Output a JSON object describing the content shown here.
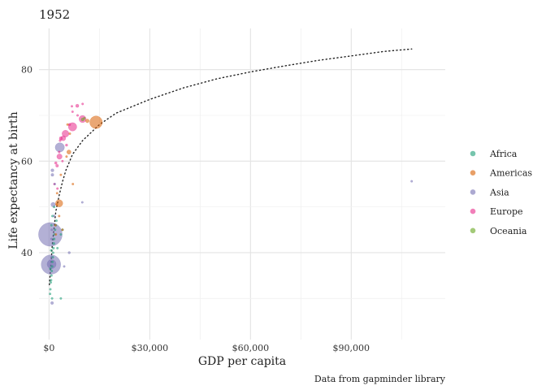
{
  "chart_data": {
    "type": "scatter",
    "title": "1952",
    "xlabel": "GDP per capita",
    "ylabel": "Life expectancy at birth",
    "caption": "Data from gapminder library",
    "xlim": [
      -3000,
      118000
    ],
    "ylim": [
      21,
      89
    ],
    "x_ticks": [
      {
        "value": 0,
        "label": "$0"
      },
      {
        "value": 30000,
        "label": "$30,000"
      },
      {
        "value": 60000,
        "label": "$60,000"
      },
      {
        "value": 90000,
        "label": "$90,000"
      }
    ],
    "y_ticks": [
      {
        "value": 40,
        "label": "40"
      },
      {
        "value": 60,
        "label": "60"
      },
      {
        "value": 80,
        "label": "80"
      }
    ],
    "grid": true,
    "legend_position": "right",
    "legend": [
      {
        "name": "Africa",
        "color": "#1b9e77"
      },
      {
        "name": "Americas",
        "color": "#d95f02"
      },
      {
        "name": "Asia",
        "color": "#7570b3"
      },
      {
        "name": "Europe",
        "color": "#e7298a"
      },
      {
        "name": "Oceania",
        "color": "#66a61e"
      }
    ],
    "trend_line": {
      "style": "dotted",
      "x": [
        100,
        1000,
        2000,
        3000,
        4000,
        5000,
        7000,
        10000,
        15000,
        20000,
        30000,
        40000,
        50000,
        60000,
        70000,
        80000,
        90000,
        100000,
        108000
      ],
      "y": [
        33,
        42,
        49,
        52.5,
        55.5,
        58,
        61.5,
        64.5,
        68,
        70.5,
        73.5,
        76,
        78,
        79.5,
        80.8,
        82,
        83,
        84,
        84.5
      ]
    },
    "series": [
      {
        "name": "Africa",
        "color": "#1b9e77",
        "points": [
          {
            "x": 300,
            "y": 31,
            "pop": 2
          },
          {
            "x": 400,
            "y": 32,
            "pop": 2
          },
          {
            "x": 500,
            "y": 33.5,
            "pop": 3
          },
          {
            "x": 600,
            "y": 34,
            "pop": 4
          },
          {
            "x": 700,
            "y": 35,
            "pop": 3
          },
          {
            "x": 800,
            "y": 36,
            "pop": 3
          },
          {
            "x": 900,
            "y": 37,
            "pop": 5
          },
          {
            "x": 1000,
            "y": 38,
            "pop": 4
          },
          {
            "x": 1100,
            "y": 39,
            "pop": 6
          },
          {
            "x": 1200,
            "y": 40,
            "pop": 4
          },
          {
            "x": 1300,
            "y": 41,
            "pop": 5
          },
          {
            "x": 1400,
            "y": 42,
            "pop": 6
          },
          {
            "x": 1500,
            "y": 43,
            "pop": 5
          },
          {
            "x": 1600,
            "y": 44,
            "pop": 4
          },
          {
            "x": 1800,
            "y": 45,
            "pop": 3
          },
          {
            "x": 2000,
            "y": 46,
            "pop": 4
          },
          {
            "x": 2200,
            "y": 47,
            "pop": 3
          },
          {
            "x": 1000,
            "y": 48,
            "pop": 3
          },
          {
            "x": 700,
            "y": 46,
            "pop": 2
          },
          {
            "x": 4000,
            "y": 45,
            "pop": 5
          },
          {
            "x": 3500,
            "y": 44,
            "pop": 4
          },
          {
            "x": 2500,
            "y": 41,
            "pop": 3
          },
          {
            "x": 900,
            "y": 30,
            "pop": 2
          },
          {
            "x": 3500,
            "y": 30,
            "pop": 2
          },
          {
            "x": 1500,
            "y": 50,
            "pop": 3
          },
          {
            "x": 600,
            "y": 40.5,
            "pop": 4
          },
          {
            "x": 400,
            "y": 36.5,
            "pop": 3
          }
        ]
      },
      {
        "name": "Americas",
        "color": "#d95f02",
        "points": [
          {
            "x": 13990,
            "y": 68.5,
            "pop": 157
          },
          {
            "x": 3000,
            "y": 50.8,
            "pop": 53
          },
          {
            "x": 2300,
            "y": 50.5,
            "pop": 5
          },
          {
            "x": 4000,
            "y": 45,
            "pop": 3
          },
          {
            "x": 5900,
            "y": 62,
            "pop": 18
          },
          {
            "x": 7100,
            "y": 55,
            "pop": 4
          },
          {
            "x": 3500,
            "y": 57,
            "pop": 4
          },
          {
            "x": 5200,
            "y": 61,
            "pop": 3
          },
          {
            "x": 2400,
            "y": 53,
            "pop": 3
          },
          {
            "x": 5500,
            "y": 68,
            "pop": 2
          },
          {
            "x": 11400,
            "y": 68.8,
            "pop": 14
          },
          {
            "x": 1900,
            "y": 46,
            "pop": 3
          },
          {
            "x": 3000,
            "y": 48,
            "pop": 3
          },
          {
            "x": 6200,
            "y": 66,
            "pop": 2
          },
          {
            "x": 2000,
            "y": 44,
            "pop": 3
          }
        ]
      },
      {
        "name": "Asia",
        "color": "#7570b3",
        "points": [
          {
            "x": 400,
            "y": 44,
            "pop": 556
          },
          {
            "x": 550,
            "y": 37.4,
            "pop": 372
          },
          {
            "x": 3200,
            "y": 63,
            "pop": 86
          },
          {
            "x": 750,
            "y": 37.5,
            "pop": 82
          },
          {
            "x": 108000,
            "y": 55.6,
            "pop": 1
          },
          {
            "x": 1200,
            "y": 50.5,
            "pop": 20
          },
          {
            "x": 6000,
            "y": 40,
            "pop": 6
          },
          {
            "x": 1000,
            "y": 58,
            "pop": 9
          },
          {
            "x": 1000,
            "y": 57,
            "pop": 8
          },
          {
            "x": 900,
            "y": 29,
            "pop": 8
          },
          {
            "x": 1500,
            "y": 48,
            "pop": 6
          },
          {
            "x": 700,
            "y": 43,
            "pop": 4
          },
          {
            "x": 800,
            "y": 45,
            "pop": 3
          },
          {
            "x": 9900,
            "y": 51,
            "pop": 1
          },
          {
            "x": 1700,
            "y": 55,
            "pop": 3
          },
          {
            "x": 4500,
            "y": 37,
            "pop": 2
          },
          {
            "x": 700,
            "y": 39,
            "pop": 2
          }
        ]
      },
      {
        "name": "Europe",
        "color": "#e7298a",
        "points": [
          {
            "x": 7000,
            "y": 67.5,
            "pop": 69
          },
          {
            "x": 9980,
            "y": 69.2,
            "pop": 50
          },
          {
            "x": 4900,
            "y": 66,
            "pop": 47
          },
          {
            "x": 3100,
            "y": 61,
            "pop": 29
          },
          {
            "x": 4200,
            "y": 65,
            "pop": 25
          },
          {
            "x": 8400,
            "y": 72.1,
            "pop": 10
          },
          {
            "x": 6100,
            "y": 68,
            "pop": 7
          },
          {
            "x": 3500,
            "y": 65,
            "pop": 10
          },
          {
            "x": 2400,
            "y": 59,
            "pop": 8
          },
          {
            "x": 2000,
            "y": 59.6,
            "pop": 7
          },
          {
            "x": 1600,
            "y": 55,
            "pop": 4
          },
          {
            "x": 3000,
            "y": 62,
            "pop": 3
          },
          {
            "x": 10000,
            "y": 72.5,
            "pop": 3
          },
          {
            "x": 7000,
            "y": 70.8,
            "pop": 4
          },
          {
            "x": 5200,
            "y": 63.5,
            "pop": 6
          },
          {
            "x": 2500,
            "y": 54,
            "pop": 3
          },
          {
            "x": 4000,
            "y": 60,
            "pop": 3
          },
          {
            "x": 8500,
            "y": 70,
            "pop": 4
          },
          {
            "x": 6800,
            "y": 72,
            "pop": 4
          },
          {
            "x": 3300,
            "y": 64.5,
            "pop": 5
          }
        ]
      },
      {
        "name": "Oceania",
        "color": "#66a61e",
        "points": [
          {
            "x": 10000,
            "y": 69.1,
            "pop": 9
          },
          {
            "x": 10500,
            "y": 69.4,
            "pop": 2
          }
        ]
      }
    ]
  }
}
